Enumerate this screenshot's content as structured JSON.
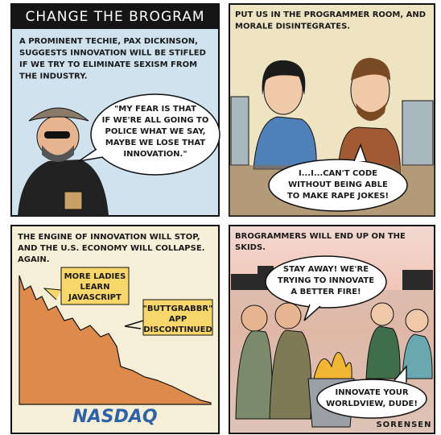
{
  "panels": [
    {
      "title": "CHANGE THE BROGRAM",
      "caption": [
        "A PROMINENT TECHIE, PAX DICKINSON,",
        "SUGGESTS INNOVATION WILL BE STIFLED",
        "IF WE TRY TO ELIMINATE SEXISM FROM",
        "THE INDUSTRY."
      ],
      "bubbles": [
        [
          "\"MY FEAR IS THAT",
          "IF WE'RE ALL GOING TO",
          "POLICE WHAT WE SAY,",
          "MAYBE WE LOSE THAT",
          "INNOVATION.\""
        ]
      ]
    },
    {
      "caption": [
        "PUT US IN THE PROGRAMMER ROOM, AND",
        "MORALE DISINTEGRATES."
      ],
      "bubbles": [
        [
          "I...I...CAN'T CODE",
          "WITHOUT BEING ABLE",
          "TO MAKE RAPE JOKES!"
        ]
      ]
    },
    {
      "caption": [
        "THE ENGINE OF INNOVATION WILL STOP,",
        "AND THE U.S. ECONOMY WILL COLLAPSE.",
        "AGAIN."
      ],
      "notes": [
        [
          "MORE LADIES",
          "LEARN",
          "JAVASCRIPT"
        ],
        [
          "\"BUTTGRABBR\"",
          "APP",
          "DISCONTINUED"
        ]
      ],
      "logo": "NASDAQ"
    },
    {
      "caption": [
        "BROGRAMMERS WILL END UP ON THE",
        "SKIDS."
      ],
      "bubbles": [
        [
          "STAY AWAY! WE'RE",
          "TRYING TO INNOVATE",
          "A BETTER FIRE!"
        ],
        [
          "INNOVATE YOUR",
          "WORLDVIEW, DUDE!"
        ]
      ],
      "signature": "SORENSEN"
    }
  ]
}
